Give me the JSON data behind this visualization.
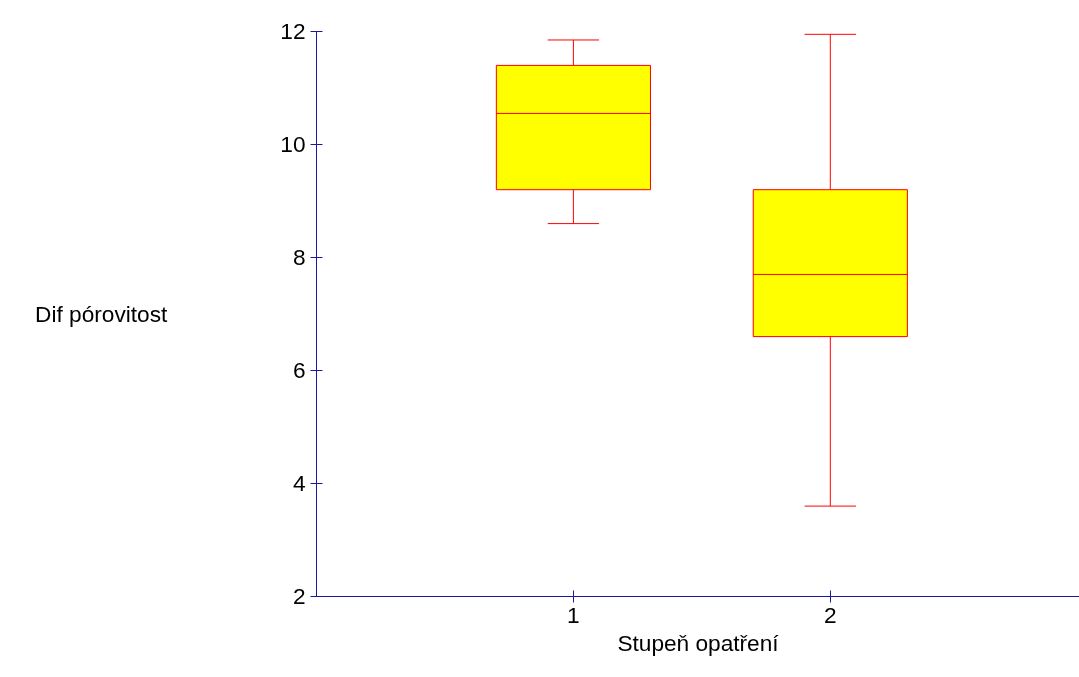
{
  "chart_data": {
    "type": "box",
    "xlabel": "Stupeň opatření",
    "ylabel": "Dif pórovitost",
    "categories": [
      "1",
      "2"
    ],
    "color": "#ffff00",
    "boxes": [
      {
        "low": 8.6,
        "q1": 9.2,
        "median": 10.55,
        "q3": 11.4,
        "high": 11.85
      },
      {
        "low": 3.6,
        "q1": 6.6,
        "median": 7.7,
        "q3": 9.2,
        "high": 11.95
      }
    ],
    "ylim": [
      2,
      12
    ],
    "yticks": [
      2,
      4,
      6,
      8,
      10,
      12
    ]
  }
}
